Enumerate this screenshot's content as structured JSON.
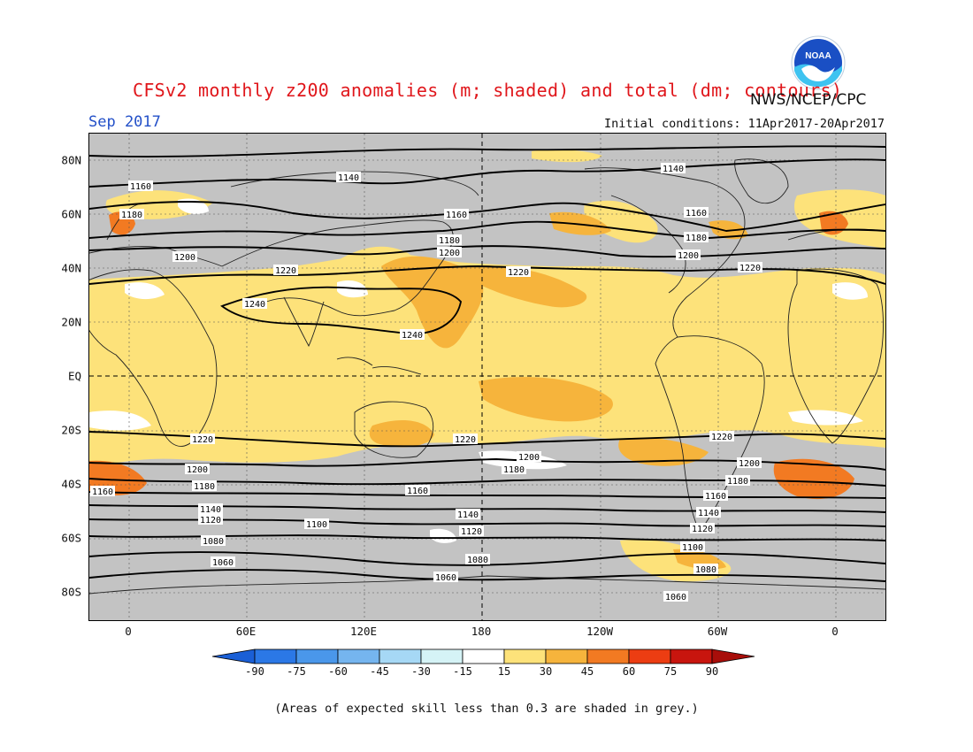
{
  "title": "CFSv2 monthly z200 anomalies (m; shaded) and total (dm; contours)",
  "agency": "NWS/NCEP/CPC",
  "valid_month": "Sep 2017",
  "initial_conditions": "Initial conditions: 11Apr2017-20Apr2017",
  "logo_text": "NOAA",
  "footnote": "(Areas of expected skill less than 0.3 are shaded in grey.)",
  "lat_labels": [
    "80N",
    "60N",
    "40N",
    "20N",
    "EQ",
    "20S",
    "40S",
    "60S",
    "80S"
  ],
  "lon_labels": [
    "0",
    "60E",
    "120E",
    "180",
    "120W",
    "60W",
    "0"
  ],
  "colorbar": {
    "ticks": [
      "-90",
      "-75",
      "-60",
      "-45",
      "-30",
      "-15",
      "15",
      "30",
      "45",
      "60",
      "75",
      "90"
    ],
    "colors": [
      "#1a5fd6",
      "#2b78e6",
      "#4a97ea",
      "#75b5ef",
      "#a6d8f5",
      "#d5f3f6",
      "#ffffff",
      "#fde27a",
      "#f6b43c",
      "#f27a22",
      "#ec3d12",
      "#c8150e",
      "#a80e0a"
    ]
  },
  "contour_labels": [
    "1140",
    "1160",
    "1180",
    "1200",
    "1220",
    "1240",
    "1100",
    "1080",
    "1060",
    "1120"
  ],
  "anomaly_colors": {
    "grey": "#c3c3c3",
    "light_yellow": "#fde27a",
    "orange": "#f6b43c",
    "dark_orange": "#f27a22",
    "red": "#ec3d12",
    "white": "#ffffff"
  }
}
